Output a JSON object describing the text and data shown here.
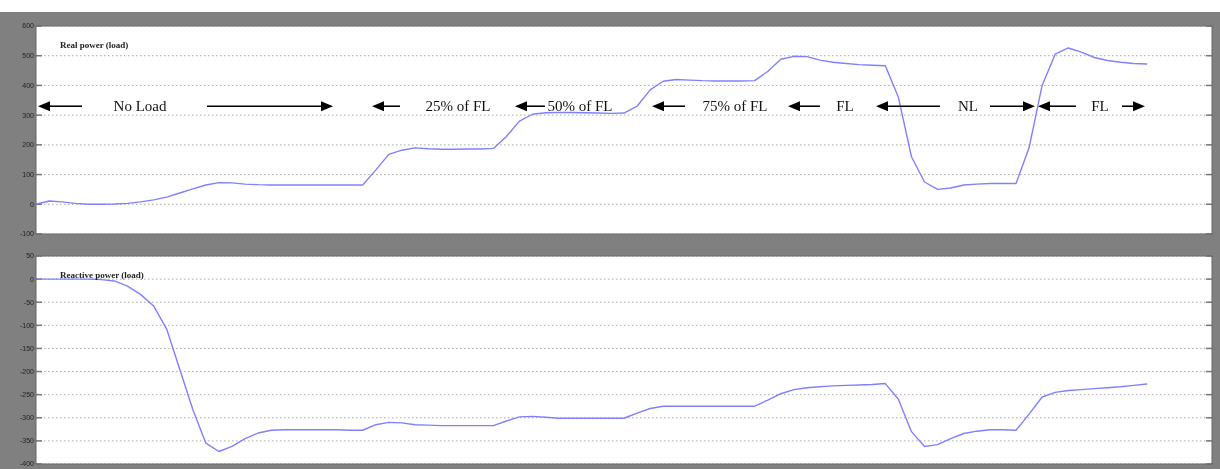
{
  "chart_data": [
    {
      "type": "line",
      "title": "Real power (load)",
      "categories": [
        null,
        null,
        null,
        null,
        null,
        null,
        null,
        null,
        null,
        null,
        null,
        null,
        null,
        null,
        null,
        null,
        null,
        null,
        null,
        null,
        null,
        null,
        null,
        null,
        null,
        null,
        null,
        null,
        null,
        null,
        null,
        null,
        null,
        null,
        null,
        null,
        null,
        null,
        null,
        null,
        null,
        null,
        null,
        null,
        null,
        null,
        null,
        null,
        null,
        null,
        null,
        null,
        null,
        null,
        null,
        null,
        null,
        null,
        null,
        null,
        null,
        null,
        null,
        null,
        null,
        null,
        null,
        null,
        null,
        null,
        null,
        null,
        null,
        null,
        null,
        null,
        null,
        null,
        null,
        null,
        null,
        null,
        null,
        null,
        null,
        null,
        null,
        null,
        null,
        null,
        null
      ],
      "series": [
        {
          "color": "#8080ff",
          "values": [
            0,
            11,
            8,
            3,
            0,
            0,
            1,
            3,
            8,
            15,
            24,
            38,
            52,
            65,
            73,
            72,
            68,
            66,
            65,
            65,
            65,
            65,
            65,
            65,
            65,
            65,
            115,
            168,
            182,
            190,
            187,
            185,
            185,
            186,
            186,
            188,
            228,
            280,
            303,
            308,
            309,
            309,
            308,
            307,
            306,
            307,
            330,
            385,
            414,
            420,
            418,
            416,
            415,
            415,
            415,
            416,
            447,
            488,
            498,
            497,
            485,
            478,
            474,
            470,
            468,
            466,
            360,
            160,
            75,
            50,
            55,
            65,
            68,
            70,
            70,
            70,
            190,
            400,
            505,
            526,
            512,
            494,
            484,
            478,
            474,
            472,
            null,
            null,
            null,
            null,
            null
          ]
        }
      ],
      "ylim": [
        -100,
        600
      ],
      "yticks": [
        -100,
        0,
        100,
        200,
        300,
        400,
        500,
        600
      ],
      "grid": "y",
      "tick_labels": "y",
      "annotations": [
        "No Load",
        "25% of FL",
        "50% of FL",
        "75% of FL",
        "FL",
        "NL",
        "FL"
      ]
    },
    {
      "type": "line",
      "title": "Reactive power (load)",
      "categories": [
        null,
        null,
        null,
        null,
        null,
        null,
        null,
        null,
        null,
        null,
        null,
        null,
        null,
        null,
        null,
        null,
        null,
        null,
        null,
        null,
        null,
        null,
        null,
        null,
        null,
        null,
        null,
        null,
        null,
        null,
        null,
        null,
        null,
        null,
        null,
        null,
        null,
        null,
        null,
        null,
        null,
        null,
        null,
        null,
        null,
        null,
        null,
        null,
        null,
        null,
        null,
        null,
        null,
        null,
        null,
        null,
        null,
        null,
        null,
        null,
        null,
        null,
        null,
        null,
        null,
        null,
        null,
        null,
        null,
        null,
        null,
        null,
        null,
        null,
        null,
        null,
        null,
        null,
        null,
        null,
        null,
        null,
        null,
        null,
        null,
        null,
        null,
        null,
        null,
        null,
        null
      ],
      "series": [
        {
          "color": "#8080ff",
          "values": [
            0,
            0,
            0,
            0,
            0,
            -1,
            -4,
            -15,
            -33,
            -58,
            -108,
            -195,
            -282,
            -355,
            -373,
            -362,
            -345,
            -333,
            -327,
            -326,
            -326,
            -326,
            -326,
            -326,
            -327,
            -327,
            -315,
            -310,
            -311,
            -315,
            -316,
            -317,
            -317,
            -317,
            -317,
            -317,
            -307,
            -298,
            -297,
            -299,
            -301,
            -301,
            -301,
            -301,
            -301,
            -301,
            -290,
            -280,
            -275,
            -275,
            -275,
            -275,
            -275,
            -275,
            -275,
            -275,
            -262,
            -248,
            -239,
            -235,
            -233,
            -231,
            -230,
            -229,
            -228,
            -226,
            -260,
            -330,
            -362,
            -358,
            -345,
            -334,
            -329,
            -326,
            -326,
            -327,
            -292,
            -255,
            -245,
            -241,
            -239,
            -237,
            -235,
            -233,
            -230,
            -227,
            null,
            null,
            null,
            null,
            null
          ]
        }
      ],
      "ylim": [
        -400,
        50
      ],
      "yticks": [
        -400,
        -350,
        -300,
        -250,
        -200,
        -150,
        -100,
        -50,
        0,
        50
      ],
      "grid": "y",
      "tick_labels": "y"
    }
  ]
}
